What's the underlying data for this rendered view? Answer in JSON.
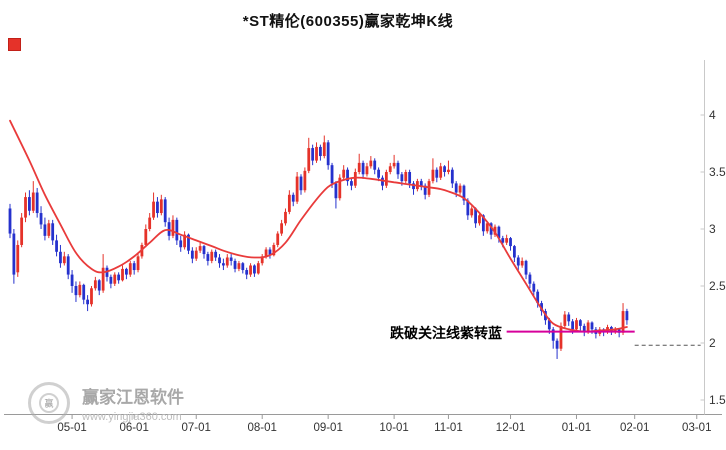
{
  "title": "*ST精伦(600355)赢家乾坤K线",
  "watermark": {
    "brand": "赢家江恩软件",
    "url": "www.yingjia360.com",
    "logo": "yingjia-circle-logo"
  },
  "colors": {
    "up_candle": "#e53229",
    "down_candle": "#2531cd",
    "trend_line": "#e93b3b",
    "alert_line": "#d6009b",
    "dashed_line": "#555555",
    "axis_line": "#9a9a9a",
    "axis_text": "#333333",
    "marker": "#e53229",
    "watermark": "#b0b0b0"
  },
  "chart_data": {
    "type": "candlestick",
    "title": "*ST精伦(600355)赢家乾坤K线",
    "ylim": [
      1.5,
      4.0
    ],
    "y_axis_side": "right",
    "grid": false,
    "y_ticks": [
      4,
      3.5,
      3,
      2.5,
      2,
      1.5
    ],
    "x_ticks": [
      {
        "idx": 16,
        "label": "05-01"
      },
      {
        "idx": 32,
        "label": "06-01"
      },
      {
        "idx": 48,
        "label": "07-01"
      },
      {
        "idx": 65,
        "label": "08-01"
      },
      {
        "idx": 82,
        "label": "09-01"
      },
      {
        "idx": 99,
        "label": "10-01"
      },
      {
        "idx": 113,
        "label": "11-01"
      },
      {
        "idx": 129,
        "label": "12-01"
      },
      {
        "idx": 146,
        "label": "01-01"
      },
      {
        "idx": 161,
        "label": "02-01"
      },
      {
        "idx": 177,
        "label": "03-01"
      }
    ],
    "candles": [
      [
        3.18,
        3.22,
        2.92,
        2.96
      ],
      [
        2.96,
        3.0,
        2.52,
        2.6
      ],
      [
        2.62,
        2.9,
        2.58,
        2.86
      ],
      [
        2.86,
        3.14,
        2.84,
        3.1
      ],
      [
        3.1,
        3.32,
        3.06,
        3.28
      ],
      [
        3.28,
        3.34,
        3.12,
        3.16
      ],
      [
        3.16,
        3.42,
        3.14,
        3.32
      ],
      [
        3.32,
        3.36,
        3.1,
        3.14
      ],
      [
        3.14,
        3.2,
        3.0,
        3.04
      ],
      [
        3.04,
        3.1,
        2.9,
        2.94
      ],
      [
        2.94,
        3.08,
        2.92,
        3.05
      ],
      [
        3.05,
        3.08,
        2.86,
        2.9
      ],
      [
        2.9,
        2.95,
        2.76,
        2.8
      ],
      [
        2.8,
        2.86,
        2.66,
        2.7
      ],
      [
        2.7,
        2.8,
        2.68,
        2.76
      ],
      [
        2.76,
        2.78,
        2.56,
        2.6
      ],
      [
        2.6,
        2.64,
        2.44,
        2.5
      ],
      [
        2.5,
        2.54,
        2.36,
        2.42
      ],
      [
        2.42,
        2.54,
        2.4,
        2.51
      ],
      [
        2.51,
        2.52,
        2.34,
        2.38
      ],
      [
        2.38,
        2.42,
        2.28,
        2.34
      ],
      [
        2.34,
        2.5,
        2.32,
        2.48
      ],
      [
        2.48,
        2.58,
        2.46,
        2.55
      ],
      [
        2.55,
        2.56,
        2.42,
        2.46
      ],
      [
        2.46,
        2.78,
        2.44,
        2.66
      ],
      [
        2.66,
        2.68,
        2.54,
        2.58
      ],
      [
        2.58,
        2.6,
        2.48,
        2.52
      ],
      [
        2.52,
        2.62,
        2.5,
        2.6
      ],
      [
        2.6,
        2.62,
        2.52,
        2.55
      ],
      [
        2.55,
        2.68,
        2.54,
        2.65
      ],
      [
        2.65,
        2.66,
        2.56,
        2.6
      ],
      [
        2.6,
        2.72,
        2.58,
        2.7
      ],
      [
        2.7,
        2.72,
        2.6,
        2.64
      ],
      [
        2.64,
        2.78,
        2.62,
        2.76
      ],
      [
        2.76,
        2.88,
        2.74,
        2.86
      ],
      [
        2.86,
        3.04,
        2.84,
        3.0
      ],
      [
        3.0,
        3.14,
        2.98,
        3.1
      ],
      [
        3.1,
        3.32,
        3.08,
        3.24
      ],
      [
        3.24,
        3.28,
        3.1,
        3.14
      ],
      [
        3.14,
        3.3,
        3.12,
        3.26
      ],
      [
        3.26,
        3.28,
        3.02,
        3.06
      ],
      [
        3.06,
        3.1,
        2.9,
        2.94
      ],
      [
        2.94,
        3.12,
        2.92,
        3.08
      ],
      [
        3.08,
        3.1,
        2.86,
        2.9
      ],
      [
        2.9,
        2.94,
        2.8,
        2.84
      ],
      [
        2.84,
        2.98,
        2.82,
        2.95
      ],
      [
        2.95,
        2.96,
        2.78,
        2.81
      ],
      [
        2.81,
        2.84,
        2.7,
        2.74
      ],
      [
        2.74,
        2.84,
        2.72,
        2.81
      ],
      [
        2.81,
        2.88,
        2.79,
        2.85
      ],
      [
        2.85,
        2.86,
        2.74,
        2.78
      ],
      [
        2.78,
        2.8,
        2.68,
        2.72
      ],
      [
        2.72,
        2.82,
        2.7,
        2.8
      ],
      [
        2.8,
        2.82,
        2.72,
        2.75
      ],
      [
        2.75,
        2.78,
        2.66,
        2.7
      ],
      [
        2.7,
        2.74,
        2.64,
        2.68
      ],
      [
        2.68,
        2.78,
        2.66,
        2.75
      ],
      [
        2.75,
        2.78,
        2.68,
        2.72
      ],
      [
        2.72,
        2.74,
        2.62,
        2.65
      ],
      [
        2.65,
        2.72,
        2.63,
        2.7
      ],
      [
        2.7,
        2.71,
        2.61,
        2.64
      ],
      [
        2.64,
        2.66,
        2.56,
        2.6
      ],
      [
        2.6,
        2.7,
        2.58,
        2.68
      ],
      [
        2.68,
        2.69,
        2.58,
        2.61
      ],
      [
        2.61,
        2.72,
        2.6,
        2.7
      ],
      [
        2.7,
        2.78,
        2.68,
        2.76
      ],
      [
        2.76,
        2.84,
        2.74,
        2.82
      ],
      [
        2.82,
        2.84,
        2.74,
        2.77
      ],
      [
        2.77,
        2.88,
        2.76,
        2.86
      ],
      [
        2.86,
        2.98,
        2.84,
        2.96
      ],
      [
        2.96,
        3.08,
        2.94,
        3.05
      ],
      [
        3.05,
        3.18,
        3.03,
        3.15
      ],
      [
        3.15,
        3.34,
        3.13,
        3.3
      ],
      [
        3.3,
        3.32,
        3.2,
        3.24
      ],
      [
        3.24,
        3.5,
        3.22,
        3.46
      ],
      [
        3.46,
        3.48,
        3.3,
        3.34
      ],
      [
        3.34,
        3.54,
        3.32,
        3.51
      ],
      [
        3.51,
        3.8,
        3.49,
        3.71
      ],
      [
        3.71,
        3.74,
        3.56,
        3.6
      ],
      [
        3.6,
        3.76,
        3.58,
        3.72
      ],
      [
        3.72,
        3.74,
        3.6,
        3.64
      ],
      [
        3.64,
        3.82,
        3.62,
        3.76
      ],
      [
        3.76,
        3.78,
        3.52,
        3.56
      ],
      [
        3.56,
        3.58,
        3.36,
        3.4
      ],
      [
        3.4,
        3.42,
        3.18,
        3.27
      ],
      [
        3.27,
        3.48,
        3.25,
        3.45
      ],
      [
        3.45,
        3.56,
        3.43,
        3.52
      ],
      [
        3.52,
        3.54,
        3.38,
        3.42
      ],
      [
        3.42,
        3.44,
        3.34,
        3.38
      ],
      [
        3.38,
        3.53,
        3.36,
        3.5
      ],
      [
        3.5,
        3.66,
        3.48,
        3.58
      ],
      [
        3.58,
        3.6,
        3.44,
        3.48
      ],
      [
        3.48,
        3.58,
        3.46,
        3.55
      ],
      [
        3.55,
        3.64,
        3.53,
        3.6
      ],
      [
        3.6,
        3.62,
        3.48,
        3.52
      ],
      [
        3.52,
        3.54,
        3.42,
        3.45
      ],
      [
        3.45,
        3.47,
        3.34,
        3.38
      ],
      [
        3.38,
        3.52,
        3.36,
        3.5
      ],
      [
        3.5,
        3.58,
        3.48,
        3.55
      ],
      [
        3.55,
        3.65,
        3.53,
        3.58
      ],
      [
        3.58,
        3.6,
        3.44,
        3.48
      ],
      [
        3.48,
        3.5,
        3.38,
        3.42
      ],
      [
        3.42,
        3.52,
        3.4,
        3.5
      ],
      [
        3.5,
        3.52,
        3.36,
        3.4
      ],
      [
        3.4,
        3.42,
        3.3,
        3.35
      ],
      [
        3.35,
        3.44,
        3.33,
        3.42
      ],
      [
        3.42,
        3.44,
        3.34,
        3.38
      ],
      [
        3.38,
        3.4,
        3.26,
        3.3
      ],
      [
        3.3,
        3.44,
        3.28,
        3.42
      ],
      [
        3.42,
        3.62,
        3.4,
        3.52
      ],
      [
        3.52,
        3.54,
        3.41,
        3.45
      ],
      [
        3.45,
        3.58,
        3.43,
        3.55
      ],
      [
        3.55,
        3.56,
        3.46,
        3.5
      ],
      [
        3.5,
        3.6,
        3.48,
        3.52
      ],
      [
        3.52,
        3.54,
        3.36,
        3.4
      ],
      [
        3.4,
        3.42,
        3.28,
        3.32
      ],
      [
        3.32,
        3.4,
        3.3,
        3.38
      ],
      [
        3.38,
        3.39,
        3.21,
        3.25
      ],
      [
        3.25,
        3.27,
        3.08,
        3.12
      ],
      [
        3.12,
        3.2,
        3.1,
        3.18
      ],
      [
        3.18,
        3.19,
        3.01,
        3.05
      ],
      [
        3.05,
        3.14,
        3.03,
        3.12
      ],
      [
        3.12,
        3.13,
        2.94,
        2.98
      ],
      [
        2.98,
        3.07,
        2.96,
        3.05
      ],
      [
        3.05,
        3.06,
        2.91,
        2.95
      ],
      [
        2.95,
        3.04,
        2.93,
        3.02
      ],
      [
        3.02,
        3.03,
        2.88,
        2.92
      ],
      [
        2.92,
        2.94,
        2.84,
        2.88
      ],
      [
        2.88,
        2.95,
        2.86,
        2.92
      ],
      [
        2.92,
        2.93,
        2.81,
        2.85
      ],
      [
        2.85,
        2.86,
        2.71,
        2.75
      ],
      [
        2.75,
        2.77,
        2.64,
        2.68
      ],
      [
        2.68,
        2.75,
        2.66,
        2.72
      ],
      [
        2.72,
        2.73,
        2.56,
        2.6
      ],
      [
        2.6,
        2.62,
        2.48,
        2.52
      ],
      [
        2.52,
        2.54,
        2.41,
        2.45
      ],
      [
        2.45,
        2.47,
        2.31,
        2.35
      ],
      [
        2.35,
        2.37,
        2.24,
        2.28
      ],
      [
        2.28,
        2.3,
        2.16,
        2.2
      ],
      [
        2.2,
        2.22,
        2.08,
        2.12
      ],
      [
        2.12,
        2.14,
        1.95,
        2.02
      ],
      [
        2.02,
        2.04,
        1.86,
        1.95
      ],
      [
        1.95,
        2.18,
        1.93,
        2.15
      ],
      [
        2.15,
        2.28,
        2.13,
        2.25
      ],
      [
        2.25,
        2.27,
        2.15,
        2.19
      ],
      [
        2.19,
        2.21,
        2.08,
        2.12
      ],
      [
        2.12,
        2.22,
        2.1,
        2.2
      ],
      [
        2.2,
        2.21,
        2.11,
        2.15
      ],
      [
        2.15,
        2.17,
        2.06,
        2.1
      ],
      [
        2.1,
        2.2,
        2.08,
        2.18
      ],
      [
        2.18,
        2.19,
        2.08,
        2.12
      ],
      [
        2.12,
        2.14,
        2.04,
        2.08
      ],
      [
        2.08,
        2.14,
        2.06,
        2.12
      ],
      [
        2.12,
        2.13,
        2.06,
        2.1
      ],
      [
        2.1,
        2.16,
        2.08,
        2.14
      ],
      [
        2.14,
        2.15,
        2.07,
        2.1
      ],
      [
        2.1,
        2.14,
        2.08,
        2.12
      ],
      [
        2.12,
        2.13,
        2.05,
        2.09
      ],
      [
        2.09,
        2.35,
        2.07,
        2.28
      ],
      [
        2.28,
        2.3,
        2.16,
        2.2
      ]
    ],
    "trend_line": {
      "name": "red-trend-line",
      "anchors": [
        [
          0,
          3.95
        ],
        [
          5,
          3.6
        ],
        [
          9,
          3.3
        ],
        [
          13,
          3.04
        ],
        [
          17,
          2.79
        ],
        [
          21,
          2.65
        ],
        [
          24,
          2.62
        ],
        [
          28,
          2.67
        ],
        [
          32,
          2.76
        ],
        [
          36,
          2.88
        ],
        [
          40,
          2.99
        ],
        [
          44,
          2.95
        ],
        [
          48,
          2.9
        ],
        [
          52,
          2.85
        ],
        [
          55,
          2.81
        ],
        [
          59,
          2.77
        ],
        [
          63,
          2.75
        ],
        [
          67,
          2.77
        ],
        [
          71,
          2.88
        ],
        [
          75,
          3.08
        ],
        [
          79,
          3.26
        ],
        [
          82,
          3.37
        ],
        [
          85,
          3.42
        ],
        [
          89,
          3.45
        ],
        [
          93,
          3.44
        ],
        [
          97,
          3.42
        ],
        [
          99,
          3.41
        ],
        [
          103,
          3.39
        ],
        [
          107,
          3.37
        ],
        [
          111,
          3.35
        ],
        [
          113,
          3.33
        ],
        [
          117,
          3.27
        ],
        [
          121,
          3.14
        ],
        [
          125,
          2.97
        ],
        [
          129,
          2.74
        ],
        [
          133,
          2.52
        ],
        [
          137,
          2.3
        ],
        [
          140,
          2.17
        ],
        [
          144,
          2.12
        ],
        [
          148,
          2.1
        ],
        [
          152,
          2.11
        ],
        [
          156,
          2.12
        ],
        [
          159,
          2.14
        ]
      ]
    },
    "alert_line": {
      "price": 2.1,
      "from_idx": 128,
      "to_idx": 161,
      "label": "跌破关注线紫转蓝"
    },
    "dashed_line": {
      "price": 1.98,
      "from_idx": 161,
      "to_idx": 178
    }
  }
}
